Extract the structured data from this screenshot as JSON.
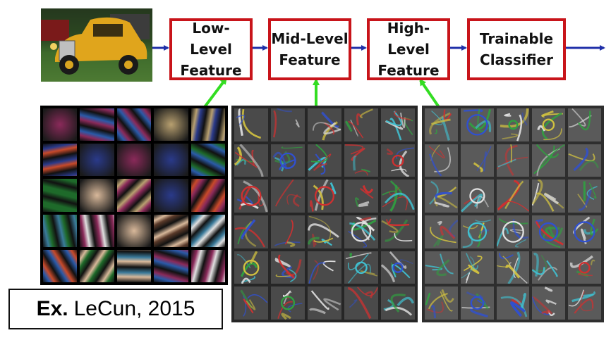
{
  "stages": [
    {
      "id": "low",
      "label": "Low-Level\nFeature"
    },
    {
      "id": "mid",
      "label": "Mid-Level\nFeature"
    },
    {
      "id": "high",
      "label": "High-Level\nFeature"
    },
    {
      "id": "cls",
      "label": "Trainable\nClassifier"
    }
  ],
  "caption": {
    "prefix": "Ex.",
    "text": "LeCun, 2015"
  },
  "colors": {
    "box_border": "#c8141a",
    "flow_arrow": "#1f2fa8",
    "link_arrow": "#33dd22"
  },
  "input_image": {
    "icon": "car-photo-icon"
  }
}
